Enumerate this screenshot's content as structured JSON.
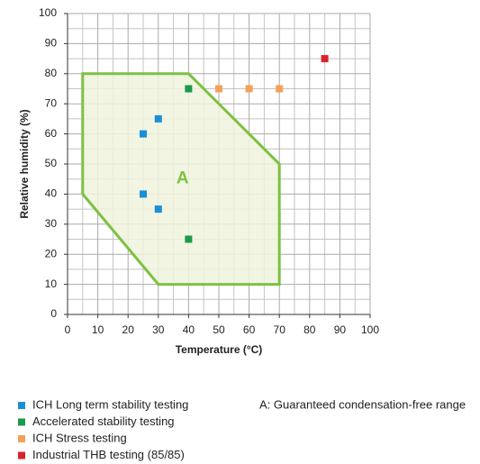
{
  "chart_data": {
    "type": "scatter",
    "x_label": "Temperature (°C)",
    "y_label": "Relative humidity (%)",
    "xlim": [
      0,
      100
    ],
    "ylim": [
      0,
      100
    ],
    "xticks": [
      0,
      10,
      20,
      30,
      40,
      50,
      60,
      70,
      80,
      90,
      100
    ],
    "yticks": [
      0,
      10,
      20,
      30,
      40,
      50,
      60,
      70,
      80,
      90,
      100
    ],
    "minor_ticks": [
      5,
      15,
      25,
      35,
      45,
      55,
      65,
      75,
      85,
      95
    ],
    "grid": true,
    "region": {
      "label": "A",
      "label_x": 38,
      "label_y": 45,
      "color": "#7dc142",
      "fill": "#eef3dc",
      "x": [
        5,
        40,
        70,
        70,
        30,
        5
      ],
      "y": [
        80,
        80,
        50,
        10,
        10,
        40
      ]
    },
    "series": [
      {
        "name": "ICH Long term stability testing",
        "color": "#1a8fd6",
        "x": [
          25,
          30,
          25,
          30
        ],
        "y": [
          60,
          65,
          40,
          35
        ]
      },
      {
        "name": "Accelerated stability testing",
        "color": "#1a9a4a",
        "x": [
          40,
          40
        ],
        "y": [
          75,
          25
        ]
      },
      {
        "name": "ICH Stress testing",
        "color": "#f5a05a",
        "x": [
          50,
          60,
          70
        ],
        "y": [
          75,
          75,
          75
        ]
      },
      {
        "name": "Industrial THB testing (85/85)",
        "color": "#d8232a",
        "x": [
          85
        ],
        "y": [
          85
        ]
      }
    ],
    "note": "A: Guaranteed condensation-free range"
  }
}
